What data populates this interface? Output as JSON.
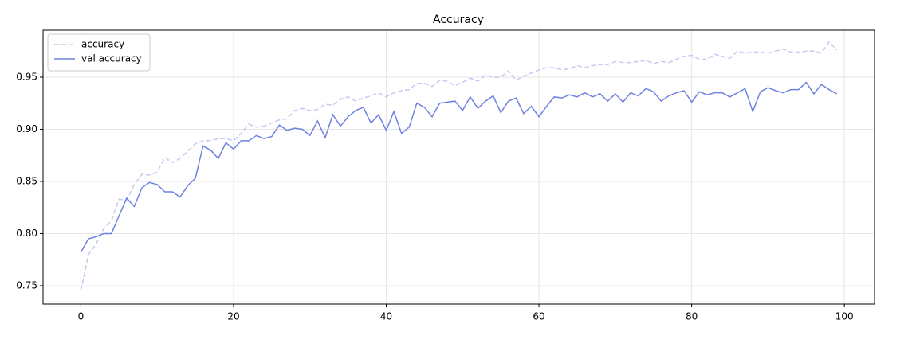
{
  "chart_data": {
    "type": "line",
    "title": "Accuracy",
    "x": [
      0,
      1,
      2,
      3,
      4,
      5,
      6,
      7,
      8,
      9,
      10,
      11,
      12,
      13,
      14,
      15,
      16,
      17,
      18,
      19,
      20,
      21,
      22,
      23,
      24,
      25,
      26,
      27,
      28,
      29,
      30,
      31,
      32,
      33,
      34,
      35,
      36,
      37,
      38,
      39,
      40,
      41,
      42,
      43,
      44,
      45,
      46,
      47,
      48,
      49,
      50,
      51,
      52,
      53,
      54,
      55,
      56,
      57,
      58,
      59,
      60,
      61,
      62,
      63,
      64,
      65,
      66,
      67,
      68,
      69,
      70,
      71,
      72,
      73,
      74,
      75,
      76,
      77,
      78,
      79,
      80,
      81,
      82,
      83,
      84,
      85,
      86,
      87,
      88,
      89,
      90,
      91,
      92,
      93,
      94,
      95,
      96,
      97,
      98,
      99
    ],
    "series": [
      {
        "name": "accuracy",
        "color": "#c8c8f0",
        "linestyle": "dashed",
        "values": [
          0.745,
          0.78,
          0.79,
          0.805,
          0.812,
          0.833,
          0.832,
          0.847,
          0.857,
          0.856,
          0.859,
          0.873,
          0.868,
          0.872,
          0.879,
          0.886,
          0.889,
          0.889,
          0.891,
          0.891,
          0.889,
          0.896,
          0.905,
          0.902,
          0.903,
          0.906,
          0.909,
          0.91,
          0.918,
          0.92,
          0.918,
          0.919,
          0.924,
          0.923,
          0.929,
          0.931,
          0.927,
          0.93,
          0.932,
          0.935,
          0.931,
          0.935,
          0.937,
          0.938,
          0.944,
          0.944,
          0.941,
          0.947,
          0.946,
          0.942,
          0.945,
          0.949,
          0.946,
          0.952,
          0.95,
          0.95,
          0.956,
          0.947,
          0.951,
          0.954,
          0.957,
          0.959,
          0.959,
          0.957,
          0.958,
          0.961,
          0.959,
          0.961,
          0.962,
          0.962,
          0.965,
          0.964,
          0.964,
          0.965,
          0.966,
          0.963,
          0.965,
          0.964,
          0.967,
          0.97,
          0.971,
          0.967,
          0.967,
          0.972,
          0.97,
          0.968,
          0.975,
          0.973,
          0.974,
          0.974,
          0.973,
          0.975,
          0.977,
          0.974,
          0.974,
          0.975,
          0.975,
          0.973,
          0.984,
          0.976
        ]
      },
      {
        "name": "val accuracy",
        "color": "#6f82e0",
        "linestyle": "solid",
        "values": [
          0.782,
          0.795,
          0.797,
          0.8,
          0.8,
          0.817,
          0.834,
          0.826,
          0.844,
          0.849,
          0.847,
          0.84,
          0.84,
          0.835,
          0.846,
          0.853,
          0.884,
          0.88,
          0.872,
          0.887,
          0.881,
          0.889,
          0.889,
          0.894,
          0.891,
          0.893,
          0.904,
          0.899,
          0.901,
          0.9,
          0.894,
          0.908,
          0.892,
          0.914,
          0.903,
          0.912,
          0.918,
          0.921,
          0.906,
          0.914,
          0.899,
          0.917,
          0.896,
          0.902,
          0.925,
          0.921,
          0.912,
          0.925,
          0.926,
          0.927,
          0.918,
          0.931,
          0.92,
          0.927,
          0.932,
          0.916,
          0.927,
          0.93,
          0.915,
          0.922,
          0.912,
          0.922,
          0.931,
          0.93,
          0.933,
          0.931,
          0.935,
          0.931,
          0.934,
          0.927,
          0.934,
          0.926,
          0.935,
          0.932,
          0.939,
          0.936,
          0.927,
          0.932,
          0.935,
          0.937,
          0.926,
          0.936,
          0.933,
          0.935,
          0.935,
          0.931,
          0.935,
          0.939,
          0.917,
          0.936,
          0.94,
          0.937,
          0.935,
          0.938,
          0.938,
          0.945,
          0.934,
          0.943,
          0.938,
          0.934
        ]
      }
    ],
    "xlim": [
      -4.95,
      103.95
    ],
    "ylim": [
      0.7324,
      0.995
    ],
    "xticks": [
      0,
      20,
      40,
      60,
      80,
      100
    ],
    "yticks": [
      0.75,
      {
        "value": 0.8,
        "label": "0.80"
      },
      0.85,
      {
        "value": 0.9,
        "label": "0.90"
      },
      0.95
    ],
    "grid": true,
    "legend": "upper-left"
  }
}
